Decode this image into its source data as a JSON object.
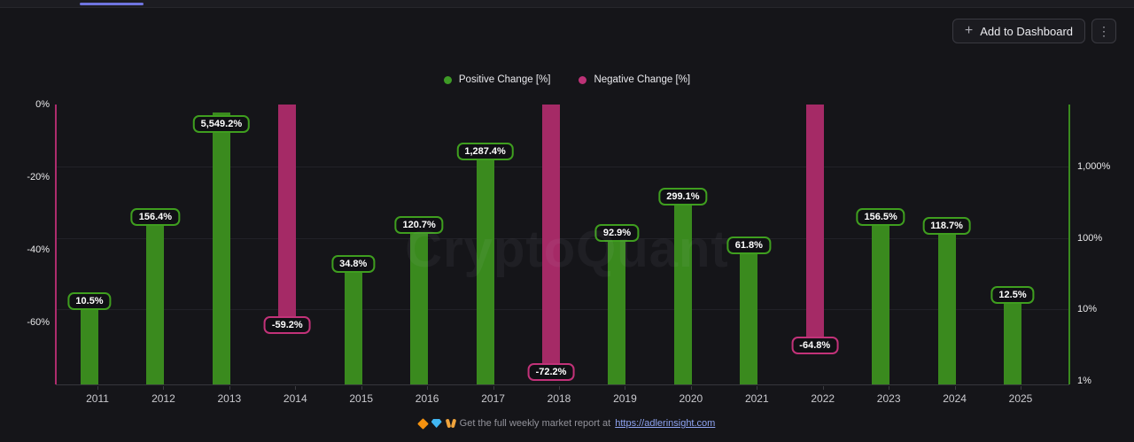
{
  "window": {
    "background": "#151519"
  },
  "tabs": {
    "active_indicator_color": "#6f74e0"
  },
  "toolbar": {
    "add_to_dashboard": {
      "label": "Add to Dashboard",
      "plus_icon": "+"
    },
    "more_menu_icon": "⋮"
  },
  "legend": {
    "items": [
      {
        "label": "Positive Change [%]",
        "color": "#3e9a26"
      },
      {
        "label": "Negative Change [%]",
        "color": "#bd3277"
      }
    ]
  },
  "watermark": "CryptoQuant",
  "chart_data": {
    "type": "bar",
    "title": "",
    "categories": [
      "2011",
      "2012",
      "2013",
      "2014",
      "2015",
      "2016",
      "2017",
      "2018",
      "2019",
      "2020",
      "2021",
      "2022",
      "2023",
      "2024",
      "2025"
    ],
    "values": [
      10.5,
      156.4,
      5549.2,
      -59.2,
      34.8,
      120.7,
      1287.4,
      -72.2,
      92.9,
      299.1,
      61.8,
      -64.8,
      156.5,
      118.7,
      12.5
    ],
    "bar_labels": [
      "10.5%",
      "156.4%",
      "5,549.2%",
      "-59.2%",
      "34.8%",
      "120.7%",
      "1,287.4%",
      "-72.2%",
      "92.9%",
      "299.1%",
      "61.8%",
      "-64.8%",
      "156.5%",
      "118.7%",
      "12.5%"
    ],
    "series": [
      {
        "name": "Positive Change [%]",
        "bar_color": "#3a8a1e",
        "label_border_color": "#3f9e1f",
        "axis_line_color": "#3a8a1e",
        "axis_side": "right"
      },
      {
        "name": "Negative Change [%]",
        "bar_color": "#a52a66",
        "label_border_color": "#c23279",
        "axis_line_color": "#ad2c6d",
        "axis_side": "left"
      }
    ],
    "left_axis": {
      "tick_labels": [
        "0%",
        "-20%",
        "-40%",
        "-60%"
      ],
      "tick_values": [
        0,
        -20,
        -40,
        -60
      ],
      "range": [
        0,
        -77.3
      ],
      "scale": "linear"
    },
    "right_axis": {
      "tick_labels": [
        "1,000%",
        "100%",
        "10%",
        "1%"
      ],
      "tick_values": [
        1000,
        100,
        10,
        1
      ],
      "scale": "log"
    },
    "grid": true,
    "legend_position": "top-center"
  },
  "footer": {
    "icons": [
      "orange-diamond",
      "blue-gem",
      "raised-hands"
    ],
    "text": "Get the full weekly market report at",
    "link": "https://adlerinsight.com"
  }
}
